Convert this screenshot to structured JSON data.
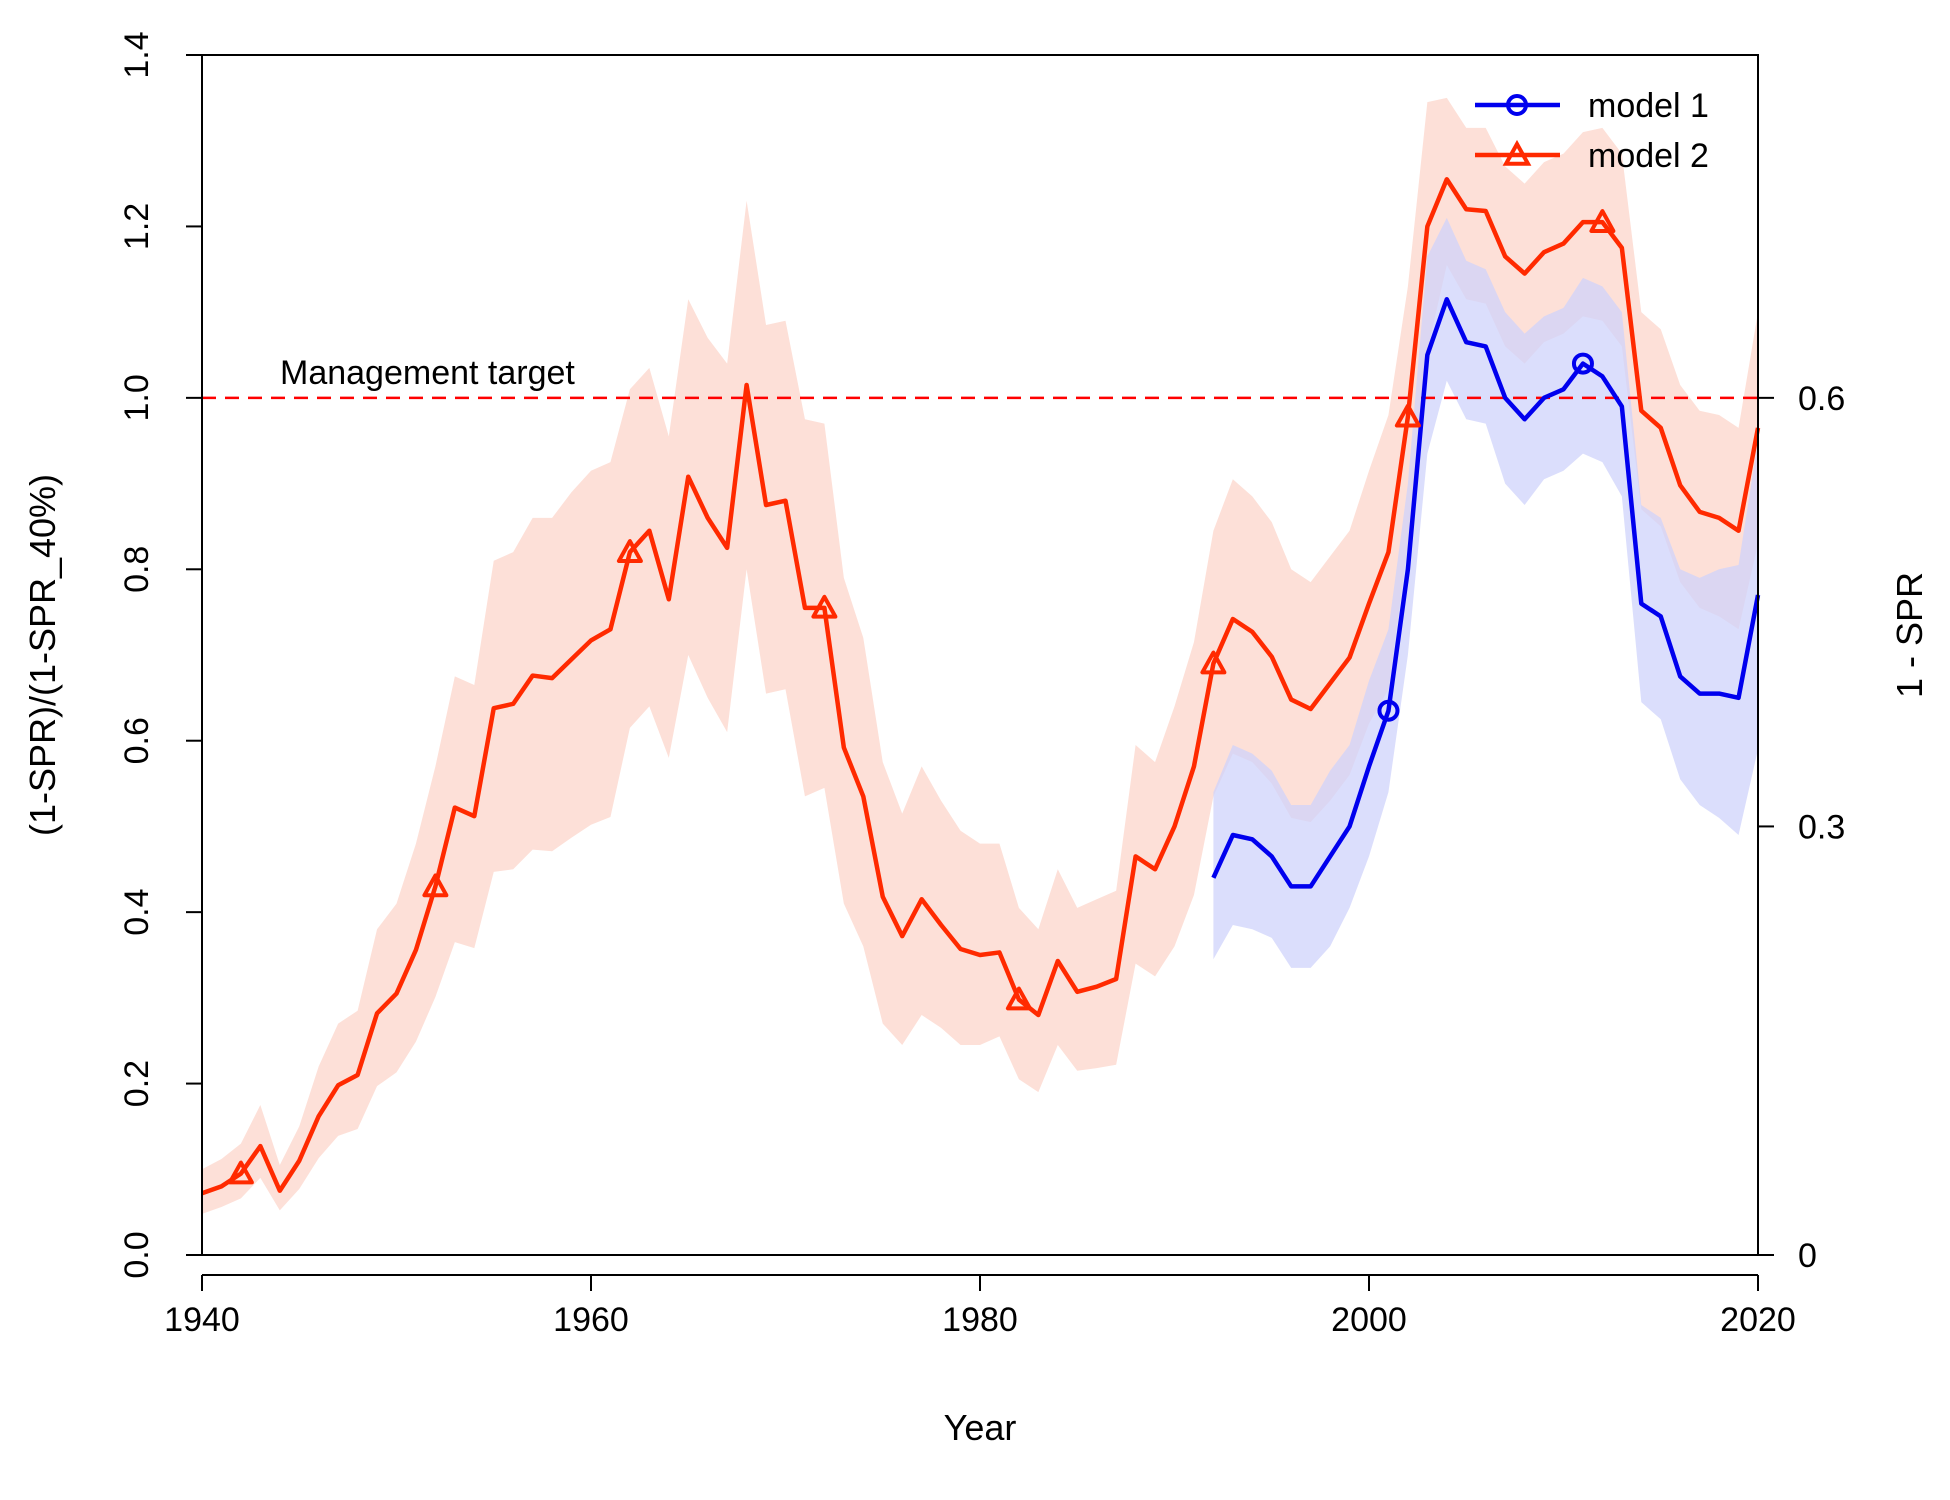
{
  "chart_data": {
    "type": "line",
    "title": "",
    "xlabel": "Year",
    "ylabel": "(1-SPR)/(1-SPR_40%)",
    "ylabel_right": "1 - SPR",
    "xlim": [
      1940,
      2020
    ],
    "ylim": [
      0,
      1.4
    ],
    "x_ticks": [
      "1940",
      "1960",
      "1980",
      "2000",
      "2020"
    ],
    "y_ticks": [
      "0.0",
      "0.2",
      "0.4",
      "0.6",
      "0.8",
      "1.0",
      "1.2",
      "1.4"
    ],
    "y_right_ticks": [
      "0",
      "0.3",
      "0.6"
    ],
    "y_right_tick_values": [
      0,
      0.5,
      1.0
    ],
    "reference_line": {
      "y": 1.0,
      "label": "Management target",
      "color": "#ff0000",
      "style": "dashed"
    },
    "legend_position": "top-right",
    "series": [
      {
        "name": "model 1",
        "color": "#0000ee",
        "band_color": "#cfd3fb",
        "marker": "circle",
        "marker_years": [
          2001,
          2011
        ],
        "x": [
          1992,
          1993,
          1994,
          1995,
          1996,
          1997,
          1998,
          1999,
          2000,
          2001,
          2002,
          2003,
          2004,
          2005,
          2006,
          2007,
          2008,
          2009,
          2010,
          2011,
          2012,
          2013,
          2014,
          2015,
          2016,
          2017,
          2018,
          2019,
          2020
        ],
        "values": [
          0.44,
          0.49,
          0.485,
          0.465,
          0.43,
          0.43,
          0.465,
          0.5,
          0.57,
          0.635,
          0.8,
          1.05,
          1.115,
          1.065,
          1.06,
          1.0,
          0.975,
          1.0,
          1.01,
          1.04,
          1.025,
          0.99,
          0.76,
          0.745,
          0.675,
          0.655,
          0.655,
          0.65,
          0.77
        ],
        "lower": [
          0.345,
          0.385,
          0.38,
          0.37,
          0.335,
          0.335,
          0.36,
          0.405,
          0.465,
          0.54,
          0.7,
          0.935,
          1.02,
          0.975,
          0.97,
          0.9,
          0.875,
          0.905,
          0.915,
          0.935,
          0.925,
          0.885,
          0.645,
          0.625,
          0.555,
          0.525,
          0.51,
          0.49,
          0.59
        ],
        "upper": [
          0.54,
          0.595,
          0.585,
          0.565,
          0.525,
          0.525,
          0.565,
          0.595,
          0.67,
          0.73,
          0.9,
          1.165,
          1.21,
          1.16,
          1.15,
          1.1,
          1.075,
          1.095,
          1.105,
          1.14,
          1.13,
          1.1,
          0.875,
          0.86,
          0.8,
          0.79,
          0.8,
          0.805,
          0.95
        ]
      },
      {
        "name": "model 2",
        "color": "#ff2a00",
        "band_color": "#fde0d8",
        "marker": "triangle",
        "marker_years": [
          1942,
          1952,
          1962,
          1972,
          1982,
          1992,
          2002,
          2012
        ],
        "x": [
          1940,
          1941,
          1942,
          1943,
          1944,
          1945,
          1946,
          1947,
          1948,
          1949,
          1950,
          1951,
          1952,
          1953,
          1954,
          1955,
          1956,
          1957,
          1958,
          1959,
          1960,
          1961,
          1962,
          1963,
          1964,
          1965,
          1966,
          1967,
          1968,
          1969,
          1970,
          1971,
          1972,
          1973,
          1974,
          1975,
          1976,
          1977,
          1978,
          1979,
          1980,
          1981,
          1982,
          1983,
          1984,
          1985,
          1986,
          1987,
          1988,
          1989,
          1990,
          1991,
          1992,
          1993,
          1994,
          1995,
          1996,
          1997,
          1998,
          1999,
          2000,
          2001,
          2002,
          2003,
          2004,
          2005,
          2006,
          2007,
          2008,
          2009,
          2010,
          2011,
          2012,
          2013,
          2014,
          2015,
          2016,
          2017,
          2018,
          2019,
          2020
        ],
        "values": [
          0.072,
          0.08,
          0.095,
          0.127,
          0.075,
          0.11,
          0.162,
          0.198,
          0.21,
          0.282,
          0.305,
          0.356,
          0.43,
          0.522,
          0.512,
          0.638,
          0.643,
          0.676,
          0.673,
          0.695,
          0.717,
          0.73,
          0.82,
          0.845,
          0.765,
          0.908,
          0.86,
          0.825,
          1.015,
          0.875,
          0.88,
          0.755,
          0.755,
          0.592,
          0.535,
          0.418,
          0.372,
          0.415,
          0.385,
          0.357,
          0.35,
          0.353,
          0.298,
          0.28,
          0.343,
          0.307,
          0.313,
          0.322,
          0.465,
          0.45,
          0.5,
          0.57,
          0.69,
          0.742,
          0.727,
          0.698,
          0.648,
          0.637,
          0.667,
          0.697,
          0.76,
          0.82,
          0.978,
          1.2,
          1.255,
          1.22,
          1.218,
          1.165,
          1.145,
          1.17,
          1.18,
          1.205,
          1.205,
          1.175,
          0.985,
          0.965,
          0.898,
          0.867,
          0.86,
          0.845,
          0.965
        ],
        "lower": [
          0.048,
          0.056,
          0.066,
          0.09,
          0.052,
          0.077,
          0.113,
          0.139,
          0.147,
          0.197,
          0.213,
          0.249,
          0.301,
          0.365,
          0.358,
          0.447,
          0.45,
          0.473,
          0.471,
          0.487,
          0.502,
          0.511,
          0.615,
          0.64,
          0.58,
          0.7,
          0.65,
          0.61,
          0.8,
          0.655,
          0.66,
          0.535,
          0.545,
          0.41,
          0.36,
          0.27,
          0.245,
          0.28,
          0.265,
          0.245,
          0.245,
          0.255,
          0.205,
          0.19,
          0.245,
          0.215,
          0.218,
          0.222,
          0.34,
          0.325,
          0.36,
          0.42,
          0.535,
          0.585,
          0.575,
          0.55,
          0.51,
          0.505,
          0.53,
          0.56,
          0.62,
          0.66,
          0.83,
          1.055,
          1.155,
          1.115,
          1.11,
          1.06,
          1.04,
          1.065,
          1.075,
          1.095,
          1.09,
          1.06,
          0.87,
          0.85,
          0.785,
          0.755,
          0.745,
          0.73,
          0.83
        ],
        "upper": [
          0.1,
          0.112,
          0.13,
          0.175,
          0.105,
          0.15,
          0.22,
          0.27,
          0.285,
          0.38,
          0.41,
          0.48,
          0.57,
          0.675,
          0.665,
          0.81,
          0.82,
          0.86,
          0.86,
          0.89,
          0.915,
          0.925,
          1.01,
          1.035,
          0.955,
          1.115,
          1.07,
          1.04,
          1.23,
          1.085,
          1.09,
          0.975,
          0.97,
          0.79,
          0.72,
          0.575,
          0.515,
          0.57,
          0.53,
          0.495,
          0.48,
          0.48,
          0.405,
          0.38,
          0.45,
          0.405,
          0.415,
          0.425,
          0.595,
          0.575,
          0.64,
          0.715,
          0.845,
          0.905,
          0.885,
          0.855,
          0.8,
          0.785,
          0.815,
          0.845,
          0.915,
          0.98,
          1.13,
          1.345,
          1.35,
          1.315,
          1.315,
          1.27,
          1.25,
          1.275,
          1.285,
          1.31,
          1.315,
          1.285,
          1.1,
          1.08,
          1.015,
          0.985,
          0.98,
          0.965,
          1.1
        ]
      }
    ]
  }
}
